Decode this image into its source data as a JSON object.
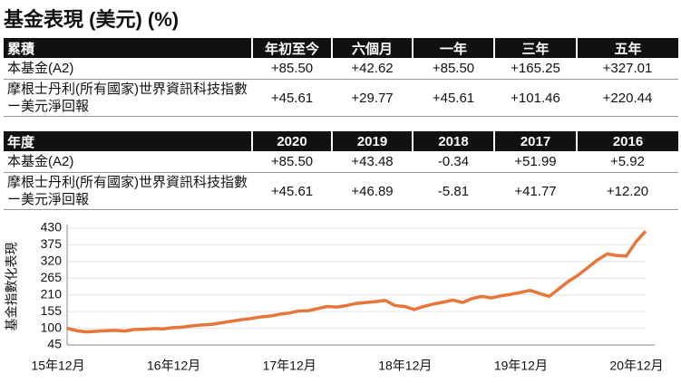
{
  "title": "基金表現 (美元) (%)",
  "tables": [
    {
      "header": [
        "累積",
        "年初至今",
        "六個月",
        "一年",
        "三年",
        "五年"
      ],
      "rows": [
        [
          "本基金(A2)",
          "+85.50",
          "+42.62",
          "+85.50",
          "+165.25",
          "+327.01"
        ],
        [
          "摩根士丹利(所有國家)世界資訊科技指數ー美元淨回報",
          "+45.61",
          "+29.77",
          "+45.61",
          "+101.46",
          "+220.44"
        ]
      ]
    },
    {
      "header": [
        "年度",
        "2020",
        "2019",
        "2018",
        "2017",
        "2016"
      ],
      "rows": [
        [
          "本基金(A2)",
          "+85.50",
          "+43.48",
          "-0.34",
          "+51.99",
          "+5.92"
        ],
        [
          "摩根士丹利(所有國家)世界資訊科技指數ー美元淨回報",
          "+45.61",
          "+46.89",
          "-5.81",
          "+41.77",
          "+12.20"
        ]
      ]
    }
  ],
  "chart_data": {
    "type": "line",
    "y_label": "基金指數化表現",
    "categories": [
      "15年12月",
      null,
      null,
      null,
      null,
      null,
      null,
      null,
      null,
      null,
      null,
      null,
      "16年12月",
      null,
      null,
      null,
      null,
      null,
      null,
      null,
      null,
      null,
      null,
      null,
      "17年12月",
      null,
      null,
      null,
      null,
      null,
      null,
      null,
      null,
      null,
      null,
      null,
      "18年12月",
      null,
      null,
      null,
      null,
      null,
      null,
      null,
      null,
      null,
      null,
      null,
      "19年12月",
      null,
      null,
      null,
      null,
      null,
      null,
      null,
      null,
      null,
      null,
      null,
      "20年12月"
    ],
    "series": [
      {
        "color": "#e8753a",
        "values": [
          100,
          92,
          88,
          90,
          92,
          93,
          91,
          96,
          97,
          99,
          98,
          102,
          104,
          108,
          111,
          113,
          118,
          123,
          128,
          132,
          137,
          140,
          146,
          150,
          157,
          158,
          165,
          172,
          170,
          175,
          182,
          185,
          188,
          192,
          175,
          172,
          162,
          172,
          180,
          186,
          193,
          185,
          198,
          205,
          200,
          207,
          212,
          218,
          225,
          215,
          205,
          230,
          255,
          275,
          300,
          325,
          345,
          340,
          338,
          385,
          420
        ]
      }
    ],
    "ylim": [
      45,
      430
    ],
    "yticks": [
      45,
      100,
      155,
      210,
      265,
      320,
      375,
      430
    ],
    "grid": true
  }
}
